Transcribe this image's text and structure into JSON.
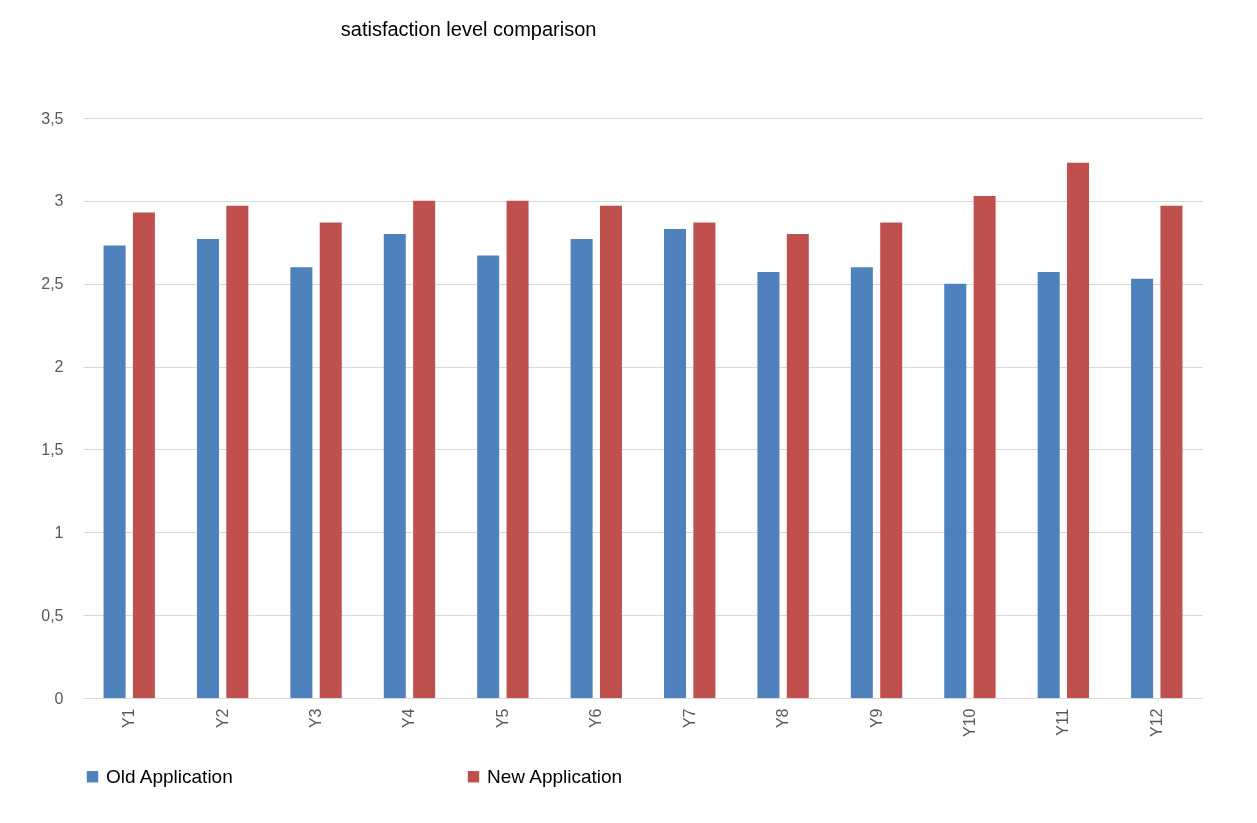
{
  "chart_data": {
    "type": "bar",
    "title": "satisfaction level comparison",
    "categories": [
      "Y1",
      "Y2",
      "Y3",
      "Y4",
      "Y5",
      "Y6",
      "Y7",
      "Y8",
      "Y9",
      "Y10",
      "Y11",
      "Y12"
    ],
    "series": [
      {
        "name": "Old Application",
        "color": "#4f81bd",
        "values": [
          2.73,
          2.77,
          2.6,
          2.8,
          2.67,
          2.77,
          2.83,
          2.57,
          2.6,
          2.5,
          2.57,
          2.53
        ]
      },
      {
        "name": "New Application",
        "color": "#c0504d",
        "values": [
          2.93,
          2.97,
          2.87,
          3.0,
          3.0,
          2.97,
          2.87,
          2.8,
          2.87,
          3.03,
          3.23,
          2.97
        ]
      }
    ],
    "ylim": [
      0,
      3.5
    ],
    "yticks": [
      0,
      {
        "value": 0.5,
        "label": "0,5"
      },
      1,
      {
        "value": 1.5,
        "label": "1,5"
      },
      2,
      {
        "value": 2.5,
        "label": "2,5"
      },
      3,
      {
        "value": 3.5,
        "label": "3,5"
      }
    ],
    "grid": "y",
    "legend": "bottom"
  }
}
